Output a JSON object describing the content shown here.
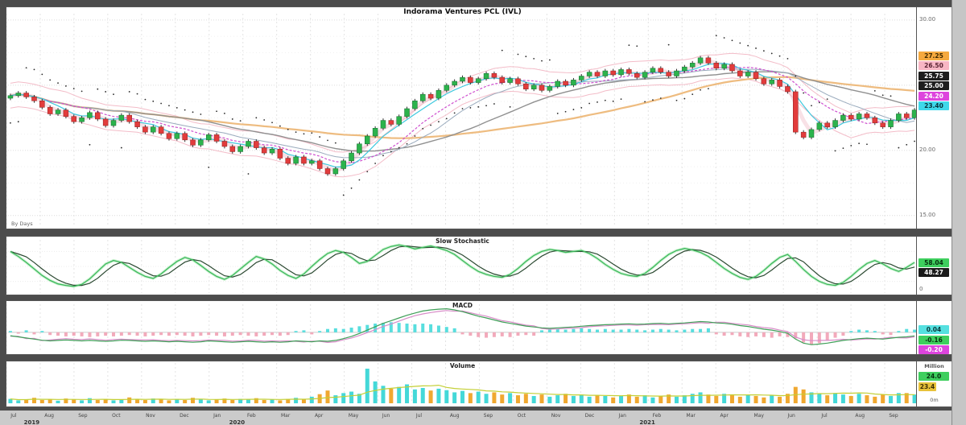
{
  "title": "Indorama Ventures PCL  (IVL)",
  "footnote": "By Days",
  "panels": {
    "stoch": {
      "title": "Slow Stochastic"
    },
    "macd": {
      "title": "MACD"
    },
    "volume": {
      "title": "Volume",
      "unit_label": "Million",
      "zero_label": "0m"
    }
  },
  "colors": {
    "candle_up": "#2cb34c",
    "candle_down": "#e23c3c",
    "wick": "#333333",
    "ma_fast": "#3fc9de",
    "ma_mid": "#cf4fcf",
    "ma_slow": "#909090",
    "ma_long": "#eebc80",
    "ma_blue": "#9aabbd",
    "band": "#f3bcc8",
    "band_fill": "#f5d4dc",
    "sar": "#2a2a2a",
    "stoch_k": "#3cb85c",
    "stoch_d": "#2c4a32",
    "stoch_glow": "#b4ecbc",
    "macd_line": "#3f9f58",
    "macd_signal": "#d88cc8",
    "hist_pos": "#58dede",
    "hist_neg": "#f2aabb",
    "vol_up": "#44d8d8",
    "vol_down": "#f0a830",
    "vol_ma": "#c3cf35",
    "frame": "#4c4c4c",
    "grid": "#e3e3e3"
  },
  "axis": {
    "main_ticks": [
      {
        "v": 30,
        "t": "30.00"
      },
      {
        "v": 20,
        "t": "20.00"
      },
      {
        "v": 15,
        "t": "15.00"
      }
    ],
    "main_badges": [
      {
        "v": 27.25,
        "t": "27.25",
        "bg": "#f5a93f",
        "fg": "#402a00"
      },
      {
        "v": 26.5,
        "t": "26.50",
        "bg": "#f8b6c4",
        "fg": "#5a2333"
      },
      {
        "v": 25.75,
        "t": "25.75",
        "bg": "#1e1e1e",
        "fg": "#ffffff"
      },
      {
        "v": 25.0,
        "t": "25.00",
        "bg": "#1e1e1e",
        "fg": "#ffffff"
      },
      {
        "v": 24.2,
        "t": "24.20",
        "bg": "#dd44dd",
        "fg": "#ffffff"
      },
      {
        "v": 23.4,
        "t": "23.40",
        "bg": "#3fd8ea",
        "fg": "#06333b"
      }
    ],
    "stoch_badges": [
      {
        "v": 58,
        "t": "58.04",
        "bg": "#3ecf5e",
        "fg": "#05300f"
      },
      {
        "v": 48,
        "t": "48.27",
        "bg": "#1a1a1a",
        "fg": "#ffffff"
      }
    ],
    "stoch_ticks": [
      {
        "v": 4,
        "t": "0"
      }
    ],
    "macd_badges": [
      {
        "v": 0.12,
        "t": "0.04",
        "bg": "#55e0e0",
        "fg": "#083a3a"
      },
      {
        "v": -0.16,
        "t": "-0.16",
        "bg": "#3ecf5e",
        "fg": "#05300f"
      },
      {
        "v": -0.2,
        "t": "-0.20",
        "bg": "#dd44dd",
        "fg": "#ffffff"
      }
    ],
    "vol_badges": [
      {
        "t": "24.0",
        "bg": "#3ecf5e",
        "fg": "#05300f",
        "w": 38
      },
      {
        "t": "23.4",
        "bg": "#e8c23a",
        "fg": "#3a2e05",
        "w": 22
      }
    ]
  },
  "timeline": {
    "months": [
      "Jul",
      "Aug",
      "Sep",
      "Oct",
      "Nov",
      "Dec",
      "Jan",
      "Feb",
      "Mar",
      "Apr",
      "May",
      "Jun",
      "Jul",
      "Aug",
      "Sep",
      "Oct",
      "Nov",
      "Dec",
      "Jan",
      "Feb",
      "Mar",
      "Apr",
      "May",
      "Jun",
      "Jul",
      "Aug",
      "Sep"
    ],
    "years": [
      {
        "t": "2019",
        "f": 0.02
      },
      {
        "t": "2020",
        "f": 0.245
      },
      {
        "t": "2021",
        "f": 0.695
      }
    ]
  },
  "chart_data": [
    {
      "type": "candlestick",
      "name": "price",
      "title": "Indorama Ventures PCL (IVL)",
      "ylim": [
        14.0,
        30.3
      ],
      "yticks": [
        30,
        25,
        20,
        15
      ],
      "open_first": 24.0,
      "closes": [
        24.2,
        24.4,
        24.1,
        23.8,
        23.3,
        22.8,
        23.1,
        22.6,
        22.2,
        22.5,
        22.9,
        22.4,
        21.9,
        22.3,
        22.7,
        22.2,
        21.8,
        21.4,
        21.8,
        21.3,
        20.9,
        21.3,
        20.8,
        20.4,
        20.8,
        21.2,
        20.7,
        20.3,
        19.9,
        20.3,
        20.7,
        20.2,
        19.8,
        20.1,
        19.4,
        19.0,
        19.5,
        19.0,
        19.2,
        18.6,
        18.2,
        18.6,
        19.2,
        19.8,
        20.5,
        21.1,
        21.7,
        22.3,
        22.0,
        22.6,
        23.2,
        23.8,
        24.3,
        24.0,
        24.6,
        25.0,
        25.3,
        25.6,
        25.2,
        25.5,
        25.9,
        25.6,
        25.2,
        25.5,
        25.1,
        24.7,
        25.0,
        24.6,
        24.9,
        25.3,
        25.0,
        25.4,
        25.7,
        26.0,
        25.7,
        26.1,
        25.8,
        26.2,
        25.9,
        25.6,
        26.0,
        26.3,
        26.0,
        25.7,
        26.1,
        26.4,
        26.7,
        27.1,
        26.7,
        26.3,
        26.6,
        26.1,
        25.7,
        26.0,
        25.5,
        25.1,
        25.4,
        24.9,
        24.5,
        21.4,
        21.0,
        21.6,
        22.1,
        21.8,
        22.3,
        22.7,
        22.4,
        22.8,
        22.5,
        22.1,
        21.8,
        22.3,
        22.8,
        22.5,
        23.1
      ]
    },
    {
      "type": "line",
      "name": "slow-stochastic",
      "title": "Slow Stochastic",
      "ylim": [
        0,
        100
      ],
      "values": [
        80,
        70,
        58,
        45,
        32,
        22,
        15,
        12,
        10,
        14,
        25,
        40,
        55,
        62,
        58,
        48,
        38,
        30,
        26,
        35,
        48,
        60,
        68,
        63,
        52,
        40,
        30,
        24,
        32,
        45,
        58,
        70,
        65,
        55,
        42,
        32,
        26,
        35,
        50,
        64,
        76,
        82,
        78,
        68,
        56,
        60,
        72,
        84,
        90,
        93,
        90,
        85,
        88,
        91,
        87,
        82,
        74,
        62,
        50,
        40,
        34,
        30,
        28,
        34,
        46,
        60,
        72,
        80,
        84,
        82,
        78,
        80,
        82,
        76,
        66,
        54,
        44,
        36,
        32,
        30,
        36,
        48,
        62,
        74,
        82,
        86,
        83,
        78,
        70,
        58,
        46,
        36,
        28,
        24,
        30,
        42,
        56,
        68,
        74,
        60,
        44,
        30,
        20,
        14,
        12,
        18,
        30,
        44,
        56,
        62,
        55,
        46,
        40,
        48,
        58
      ]
    },
    {
      "type": "macd",
      "name": "macd",
      "title": "MACD",
      "ylim": [
        -0.9,
        1.25
      ],
      "macd": [
        -0.15,
        -0.2,
        -0.25,
        -0.3,
        -0.35,
        -0.38,
        -0.36,
        -0.34,
        -0.36,
        -0.38,
        -0.36,
        -0.38,
        -0.4,
        -0.38,
        -0.35,
        -0.36,
        -0.38,
        -0.4,
        -0.38,
        -0.4,
        -0.42,
        -0.4,
        -0.42,
        -0.44,
        -0.42,
        -0.38,
        -0.4,
        -0.42,
        -0.44,
        -0.42,
        -0.4,
        -0.42,
        -0.44,
        -0.42,
        -0.44,
        -0.42,
        -0.38,
        -0.4,
        -0.42,
        -0.38,
        -0.4,
        -0.36,
        -0.28,
        -0.18,
        -0.05,
        0.1,
        0.25,
        0.4,
        0.52,
        0.64,
        0.76,
        0.86,
        0.95,
        1.0,
        1.03,
        1.05,
        1.0,
        0.92,
        0.82,
        0.72,
        0.64,
        0.55,
        0.46,
        0.4,
        0.34,
        0.28,
        0.24,
        0.2,
        0.18,
        0.2,
        0.22,
        0.24,
        0.27,
        0.3,
        0.32,
        0.34,
        0.35,
        0.37,
        0.38,
        0.36,
        0.37,
        0.39,
        0.4,
        0.38,
        0.4,
        0.42,
        0.45,
        0.48,
        0.46,
        0.42,
        0.4,
        0.36,
        0.3,
        0.26,
        0.2,
        0.14,
        0.1,
        0.04,
        -0.04,
        -0.3,
        -0.48,
        -0.55,
        -0.52,
        -0.48,
        -0.42,
        -0.36,
        -0.32,
        -0.28,
        -0.26,
        -0.28,
        -0.3,
        -0.26,
        -0.22,
        -0.2,
        -0.16
      ],
      "hist": [
        0.02,
        -0.02,
        0.03,
        -0.03,
        0.02,
        -0.04,
        -0.05,
        -0.06,
        -0.05,
        -0.06,
        -0.07,
        -0.06,
        -0.05,
        -0.06,
        -0.05,
        -0.04,
        -0.05,
        -0.06,
        -0.05,
        -0.04,
        -0.05,
        -0.04,
        -0.05,
        -0.06,
        -0.05,
        -0.04,
        -0.05,
        -0.06,
        -0.05,
        -0.04,
        -0.05,
        -0.06,
        -0.05,
        -0.04,
        -0.05,
        -0.04,
        0.02,
        0.03,
        -0.03,
        0.02,
        0.05,
        0.06,
        0.05,
        0.07,
        0.09,
        0.11,
        0.13,
        0.14,
        0.15,
        0.14,
        0.13,
        0.12,
        0.13,
        0.12,
        0.1,
        0.08,
        0.06,
        -0.03,
        -0.05,
        -0.07,
        -0.08,
        -0.07,
        -0.06,
        -0.07,
        -0.05,
        -0.04,
        -0.05,
        0.03,
        0.04,
        0.05,
        0.04,
        0.05,
        0.06,
        0.05,
        0.04,
        0.05,
        0.04,
        0.04,
        0.05,
        0.04,
        0.03,
        0.04,
        0.05,
        0.04,
        0.03,
        0.04,
        0.05,
        0.05,
        0.06,
        -0.03,
        -0.05,
        -0.04,
        -0.06,
        -0.07,
        -0.06,
        -0.07,
        -0.08,
        -0.06,
        -0.07,
        -0.09,
        -0.15,
        -0.18,
        -0.16,
        -0.12,
        -0.08,
        -0.05,
        0.02,
        0.04,
        0.03,
        0.02,
        -0.03,
        -0.04,
        0.02,
        0.05,
        0.04
      ]
    },
    {
      "type": "bar",
      "name": "volume",
      "title": "Volume",
      "unit": "Million",
      "ymax": 115,
      "values": [
        12,
        8,
        10,
        15,
        9,
        11,
        7,
        13,
        10,
        8,
        14,
        9,
        12,
        8,
        10,
        16,
        11,
        9,
        13,
        10,
        8,
        12,
        9,
        15,
        11,
        8,
        10,
        13,
        9,
        12,
        10,
        14,
        9,
        11,
        8,
        12,
        15,
        10,
        18,
        25,
        35,
        22,
        28,
        32,
        26,
        95,
        60,
        48,
        40,
        45,
        52,
        38,
        42,
        35,
        40,
        36,
        30,
        34,
        28,
        32,
        26,
        30,
        24,
        28,
        22,
        26,
        20,
        24,
        18,
        22,
        26,
        20,
        24,
        18,
        22,
        20,
        16,
        20,
        24,
        18,
        22,
        16,
        20,
        24,
        18,
        22,
        26,
        30,
        24,
        20,
        26,
        22,
        18,
        24,
        20,
        16,
        22,
        18,
        26,
        45,
        38,
        30,
        26,
        22,
        28,
        24,
        20,
        26,
        22,
        18,
        24,
        20,
        28,
        28,
        24
      ]
    }
  ]
}
